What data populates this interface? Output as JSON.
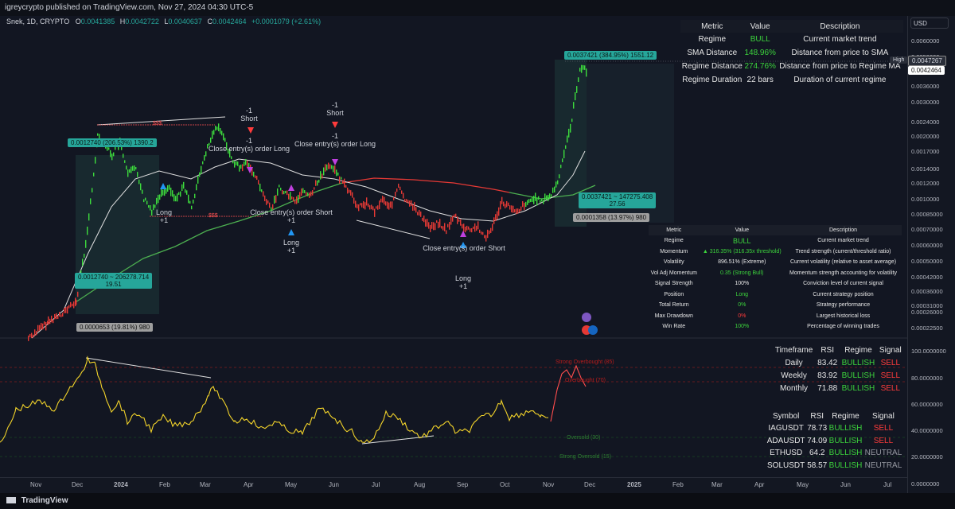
{
  "publisher": "igreycrypto published on TradingView.com, Nov 27, 2024 04:30 UTC-5",
  "legend": {
    "symbol": "Snek, 1D, CRYPTO",
    "o_label": "O",
    "o": "0.0041385",
    "h_label": "H",
    "h": "0.0042722",
    "l_label": "L",
    "l": "0.0040637",
    "c_label": "C",
    "c": "0.0042464",
    "change": "+0.0001079 (+2.61%)"
  },
  "currency": "USD",
  "top_table": {
    "headers": [
      "Metric",
      "Value",
      "Description"
    ],
    "rows": [
      {
        "metric": "Regime",
        "value": "BULL",
        "desc": "Current market trend"
      },
      {
        "metric": "SMA Distance",
        "value": "148.96%",
        "desc": "Distance from price to SMA"
      },
      {
        "metric": "Regime Distance",
        "value": "274.76%",
        "desc": "Distance from price to Regime MA"
      },
      {
        "metric": "Regime Duration",
        "value": "22 bars",
        "desc": "Duration of current regime"
      }
    ]
  },
  "strategy_table": {
    "headers": [
      "Metric",
      "Value",
      "Description"
    ],
    "rows": [
      {
        "metric": "Regime",
        "value": "BULL",
        "desc": "Current market trend"
      },
      {
        "metric": "Momentum",
        "value": "▲ 316.35% (316.35x threshold)",
        "desc": "Trend strength (current/threshold ratio)"
      },
      {
        "metric": "Volatility",
        "value": "896.51% (Extreme)",
        "desc": "Current volatility (relative to asset average)"
      },
      {
        "metric": "Vol Adj Momentum",
        "value": "0.35 (Strong Bull)",
        "desc": "Momentum strength accounting for volatility"
      },
      {
        "metric": "Signal Strength",
        "value": "100%",
        "desc": "Conviction level of current signal"
      },
      {
        "metric": "Position",
        "value": "Long",
        "desc": "Current strategy position"
      },
      {
        "metric": "Total Return",
        "value": "0%",
        "desc": "Strategy performance"
      },
      {
        "metric": "Max Drawdown",
        "value": "0%",
        "desc": "Largest historical loss"
      },
      {
        "metric": "Win Rate",
        "value": "100%",
        "desc": "Percentage of winning trades"
      }
    ]
  },
  "rsi_table": {
    "headers": [
      "Timeframe",
      "RSI",
      "Regime",
      "Signal"
    ],
    "rows": [
      {
        "tf": "Daily",
        "rsi": "83.42",
        "regime": "BULLISH",
        "signal": "SELL"
      },
      {
        "tf": "Weekly",
        "rsi": "83.92",
        "regime": "BULLISH",
        "signal": "SELL"
      },
      {
        "tf": "Monthly",
        "rsi": "71.88",
        "regime": "BULLISH",
        "signal": "SELL"
      }
    ]
  },
  "symbol_table": {
    "headers": [
      "Symbol",
      "RSI",
      "Regime",
      "Signal"
    ],
    "rows": [
      {
        "sym": "IAGUSDT",
        "rsi": "78.73",
        "regime": "BULLISH",
        "signal": "SELL"
      },
      {
        "sym": "ADAUSDT",
        "rsi": "74.09",
        "regime": "BULLISH",
        "signal": "SELL"
      },
      {
        "sym": "ETHUSD",
        "rsi": "64.2",
        "regime": "BULLISH",
        "signal": "NEUTRAL"
      },
      {
        "sym": "SOLUSDT",
        "rsi": "58.57",
        "regime": "BULLISH",
        "signal": "NEUTRAL"
      }
    ]
  },
  "price_ticks": [
    "0.0060000",
    "0.0050000",
    "0.0042464",
    "0.0036000",
    "0.0030000",
    "0.0024000",
    "0.0020000",
    "0.0017000",
    "0.0014000",
    "0.0012000",
    "0.0010000",
    "0.00085000",
    "0.00070000",
    "0.00060000",
    "0.00050000",
    "0.00042000",
    "0.00036000",
    "0.00031000",
    "0.00026000",
    "0.00022500"
  ],
  "rsi_ticks": [
    "100.0000000",
    "80.0000000",
    "60.0000000",
    "40.0000000",
    "20.0000000",
    "0.0000000"
  ],
  "high_label": "High",
  "high_value": "0.0047267",
  "last_value": "0.0042464",
  "x_labels": [
    "Nov",
    "Dec",
    "2024",
    "Feb",
    "Mar",
    "Apr",
    "May",
    "Jun",
    "Jul",
    "Aug",
    "Sep",
    "Oct",
    "Nov",
    "Dec",
    "2025",
    "Feb",
    "Mar",
    "Apr",
    "May",
    "Jun",
    "Jul"
  ],
  "annotations": {
    "pill1": "0.0012740 (206.53%) 1390.2",
    "pill2a": "0.0012740 ~ 206278.714",
    "pill2b": "19.51",
    "pill3": "0.0000653 (19.81%) 980",
    "pill4": "0.0037421 (384.95%) 1551.12",
    "pill5a": "0.0037421 ~ 147275.408",
    "pill5b": "27.56",
    "pill6": "0.0001358 (13.97%) 980",
    "short1_a": "-1",
    "short1_b": "Short",
    "short1_c": "-1",
    "short1_d": "Close entry(s) order Long",
    "short2_a": "-1",
    "short2_b": "Short",
    "short2_c": "-1",
    "short2_d": "Close entry(s) order Long",
    "long1_a": "Long",
    "long1_b": "+1",
    "close_short1": "Close entry(s) order Short",
    "close_short1_b": "+1",
    "long2_a": "Long",
    "long2_b": "+1",
    "close_short2": "Close entry(s) order Short",
    "long3_a": "Long",
    "long3_b": "+1",
    "sss": "$$$",
    "overbought85": "Strong Overbought (85)",
    "overbought70": "Overbought (70)",
    "oversold30": "Oversold (30)",
    "oversold15": "Strong Oversold (15)"
  },
  "footer": "TradingView"
}
